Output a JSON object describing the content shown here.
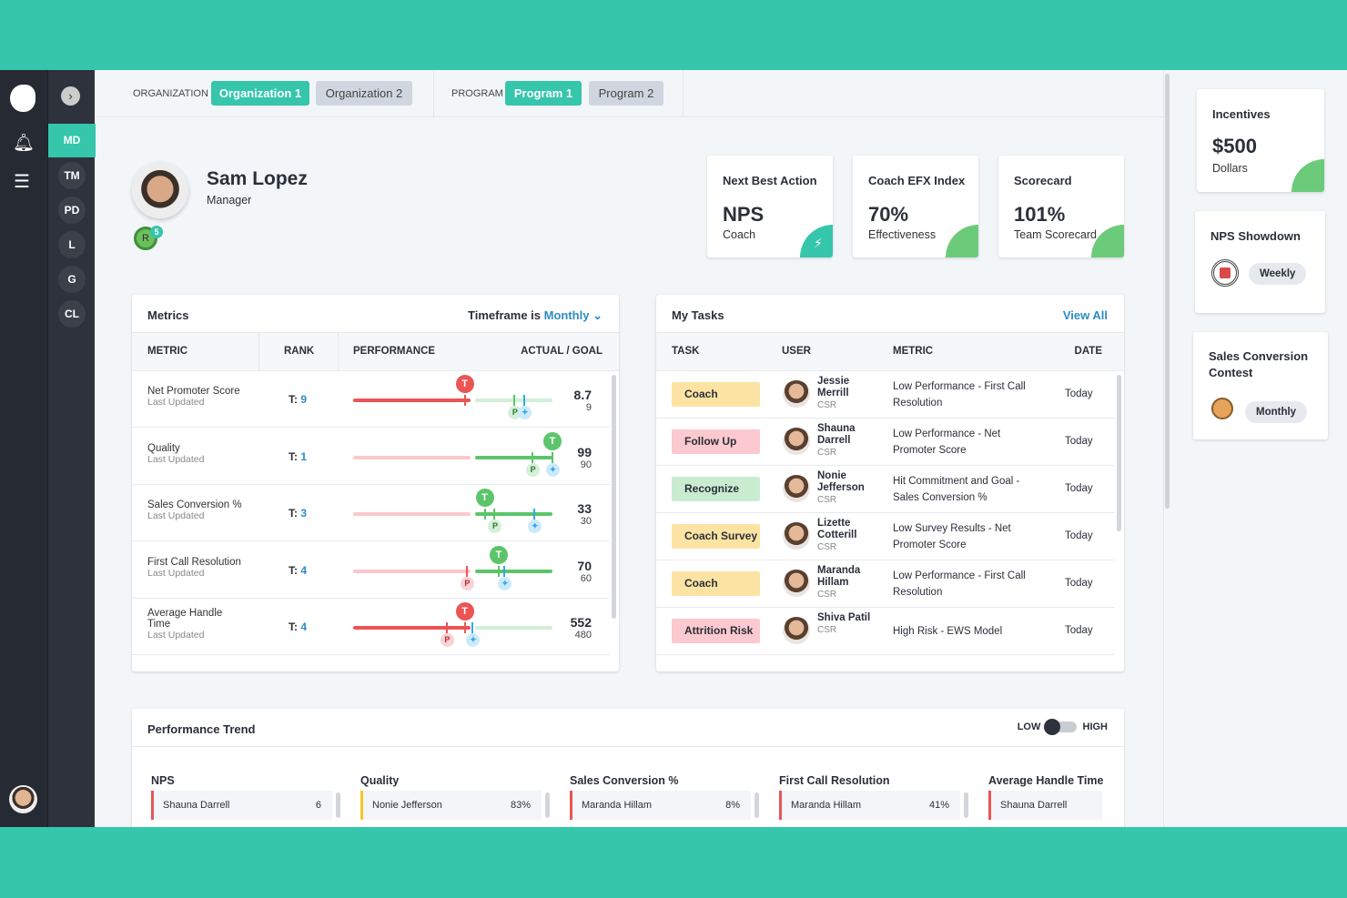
{
  "colors": {
    "accent": "#35c6ab",
    "red": "#ec5454",
    "green": "#5cc56a",
    "blue": "#2fa9e8"
  },
  "nav": {
    "items": [
      "MD",
      "TM",
      "PD",
      "L",
      "G",
      "CL"
    ],
    "active": "MD"
  },
  "topbar": {
    "org_label": "ORGANIZATION",
    "orgs": [
      "Organization 1",
      "Organization 2"
    ],
    "program_label": "PROGRAM",
    "programs": [
      "Program 1",
      "Program 2"
    ]
  },
  "profile": {
    "name": "Sam Lopez",
    "role": "Manager",
    "badge_letter": "R",
    "badge_count": "5"
  },
  "kpis": [
    {
      "title": "Next Best Action",
      "value": "NPS",
      "sub": "Coach",
      "icon": "lightning-icon"
    },
    {
      "title": "Coach EFX Index",
      "value": "70%",
      "sub": "Effectiveness"
    },
    {
      "title": "Scorecard",
      "value": "101%",
      "sub": "Team Scorecard"
    }
  ],
  "side": {
    "incentives": {
      "title": "Incentives",
      "value": "$500",
      "sub": "Dollars"
    },
    "contests": [
      {
        "title": "NPS Showdown",
        "period": "Weekly"
      },
      {
        "title": "Sales Conversion Contest",
        "period": "Monthly"
      }
    ]
  },
  "metrics": {
    "title": "Metrics",
    "timeframe_label": "Timeframe is",
    "timeframe": "Monthly",
    "headers": [
      "METRIC",
      "RANK",
      "PERFORMANCE",
      "ACTUAL / GOAL"
    ],
    "rank_prefix": "T:",
    "updated": "Last Updated",
    "rows": [
      {
        "name": "Net Promoter Score",
        "rank": "9",
        "actual": "8.7",
        "goal": "9",
        "status": "red",
        "t": 0.56,
        "p": 0.81,
        "star": 0.86,
        "p_status": "green"
      },
      {
        "name": "Quality",
        "rank": "1",
        "actual": "99",
        "goal": "90",
        "status": "green",
        "t": 1.0,
        "p": 0.9,
        "star": 1.0,
        "p_status": "green"
      },
      {
        "name": "Sales Conversion %",
        "rank": "3",
        "actual": "33",
        "goal": "30",
        "status": "green",
        "t": 0.66,
        "p": 0.71,
        "star": 0.91,
        "p_status": "green"
      },
      {
        "name": "First Call Resolution",
        "rank": "4",
        "actual": "70",
        "goal": "60",
        "status": "green",
        "t": 0.73,
        "p": 0.57,
        "star": 0.76,
        "p_status": "red"
      },
      {
        "name": "Average Handle Time",
        "rank": "4",
        "actual": "552",
        "goal": "480",
        "status": "red",
        "t": 0.56,
        "p": 0.47,
        "star": 0.6,
        "p_status": "red"
      }
    ]
  },
  "tasks": {
    "title": "My Tasks",
    "view_all": "View All",
    "headers": [
      "TASK",
      "USER",
      "METRIC",
      "DATE"
    ],
    "rows": [
      {
        "task": "Coach",
        "color": "#fde3a3",
        "user": "Jessie Merrill",
        "role": "CSR",
        "metric": "Low Performance - First Call Resolution",
        "date": "Today"
      },
      {
        "task": "Follow Up",
        "color": "#fbc9cf",
        "user": "Shauna Darrell",
        "role": "CSR",
        "metric": "Low Performance - Net Promoter Score",
        "date": "Today"
      },
      {
        "task": "Recognize",
        "color": "#c9ecd1",
        "user": "Nonie Jefferson",
        "role": "CSR",
        "metric": "Hit Commitment and Goal - Sales Conversion %",
        "date": "Today"
      },
      {
        "task": "Coach Survey",
        "color": "#fde3a3",
        "user": "Lizette Cotterill",
        "role": "CSR",
        "metric": "Low Survey Results - Net Promoter Score",
        "date": "Today"
      },
      {
        "task": "Coach",
        "color": "#fde3a3",
        "user": "Maranda Hillam",
        "role": "CSR",
        "metric": "Low Performance - First Call Resolution",
        "date": "Today"
      },
      {
        "task": "Attrition Risk",
        "color": "#fbc9cf",
        "user": "Shiva Patil",
        "role": "CSR",
        "metric": "High Risk - EWS Model",
        "date": "Today"
      }
    ]
  },
  "trend": {
    "title": "Performance Trend",
    "low": "LOW",
    "high": "HIGH",
    "toggle": "low",
    "columns": [
      {
        "title": "NPS",
        "name": "Shauna Darrell",
        "value": "6",
        "color": "#ec5454"
      },
      {
        "title": "Quality",
        "name": "Nonie Jefferson",
        "value": "83%",
        "color": "#f5c928"
      },
      {
        "title": "Sales Conversion %",
        "name": "Maranda Hillam",
        "value": "8%",
        "color": "#ec5454"
      },
      {
        "title": "First Call Resolution",
        "name": "Maranda Hillam",
        "value": "41%",
        "color": "#ec5454"
      },
      {
        "title": "Average Handle Time",
        "name": "Shauna Darrell",
        "value": "",
        "color": "#ec5454"
      }
    ]
  }
}
